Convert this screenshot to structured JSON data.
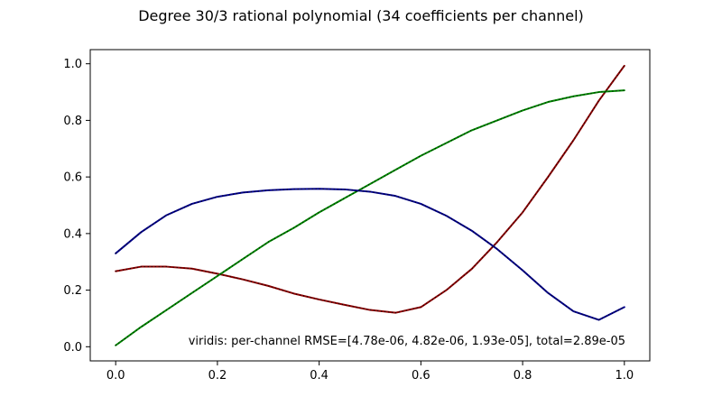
{
  "chart_data": {
    "type": "line",
    "title": "Degree 30/3 rational polynomial (34 coefficients per channel)",
    "xlabel": "",
    "ylabel": "",
    "xlim": [
      -0.05,
      1.05
    ],
    "ylim": [
      -0.05,
      1.05
    ],
    "xticks": [
      "0.0",
      "0.2",
      "0.4",
      "0.6",
      "0.8",
      "1.0"
    ],
    "yticks": [
      "0.0",
      "0.2",
      "0.4",
      "0.6",
      "0.8",
      "1.0"
    ],
    "grid": false,
    "annotation": "viridis: per-channel RMSE=[4.78e-06, 4.82e-06, 1.93e-05], total=2.89e-05",
    "series": [
      {
        "color": "#8b0000",
        "x": [
          0.0,
          0.05,
          0.1,
          0.15,
          0.2,
          0.25,
          0.3,
          0.35,
          0.4,
          0.45,
          0.5,
          0.55,
          0.6,
          0.65,
          0.7,
          0.75,
          0.8,
          0.85,
          0.9,
          0.95,
          1.0
        ],
        "y": [
          0.267,
          0.283,
          0.283,
          0.276,
          0.258,
          0.238,
          0.215,
          0.188,
          0.167,
          0.148,
          0.13,
          0.12,
          0.14,
          0.2,
          0.275,
          0.37,
          0.475,
          0.6,
          0.73,
          0.87,
          0.993
        ]
      },
      {
        "color": "#008800",
        "x": [
          0.0,
          0.05,
          0.1,
          0.15,
          0.2,
          0.25,
          0.3,
          0.35,
          0.4,
          0.45,
          0.5,
          0.55,
          0.6,
          0.65,
          0.7,
          0.75,
          0.8,
          0.85,
          0.9,
          0.95,
          1.0
        ],
        "y": [
          0.005,
          0.07,
          0.13,
          0.19,
          0.25,
          0.31,
          0.37,
          0.42,
          0.475,
          0.525,
          0.575,
          0.625,
          0.675,
          0.72,
          0.765,
          0.8,
          0.835,
          0.865,
          0.885,
          0.9,
          0.906
        ]
      },
      {
        "color": "#00008b",
        "x": [
          0.0,
          0.05,
          0.1,
          0.15,
          0.2,
          0.25,
          0.3,
          0.35,
          0.4,
          0.45,
          0.5,
          0.55,
          0.6,
          0.65,
          0.7,
          0.75,
          0.8,
          0.85,
          0.9,
          0.95,
          1.0
        ],
        "y": [
          0.33,
          0.405,
          0.465,
          0.505,
          0.53,
          0.545,
          0.553,
          0.557,
          0.558,
          0.556,
          0.548,
          0.533,
          0.505,
          0.463,
          0.41,
          0.345,
          0.27,
          0.19,
          0.125,
          0.095,
          0.14
        ]
      }
    ]
  }
}
